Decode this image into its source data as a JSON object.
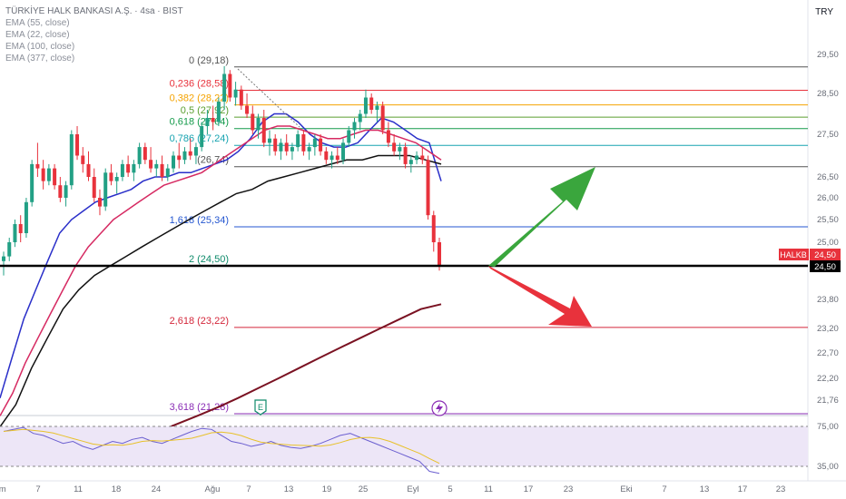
{
  "header": {
    "title": "TÜRKİYE HALK BANKASI A.Ş. · 4sa · BIST",
    "currency": "TRY",
    "indicators": [
      "EMA (55, close)",
      "EMA (22, close)",
      "EMA (100, close)",
      "EMA (377, close)"
    ]
  },
  "price_tag": {
    "symbol": "HALKB",
    "value": "24,50",
    "line_value": "24,50"
  },
  "chart_data": {
    "type": "candlestick",
    "title": "TÜRKİYE HALK BANKASI A.Ş. · 4sa · BIST",
    "y_ticks": [
      "29,50",
      "28,50",
      "27,50",
      "26,50",
      "26,00",
      "25,50",
      "25,00",
      "23,80",
      "23,20",
      "22,70",
      "22,20",
      "21,76"
    ],
    "y_tick_values": [
      29.5,
      28.5,
      27.5,
      26.5,
      26.0,
      25.5,
      25.0,
      23.8,
      23.2,
      22.7,
      22.2,
      21.76
    ],
    "x_ticks": [
      "em",
      "7",
      "11",
      "18",
      "24",
      "Ağu",
      "7",
      "13",
      "19",
      "25",
      "Eyl",
      "5",
      "11",
      "17",
      "23",
      "Eki",
      "7",
      "13",
      "17",
      "23"
    ],
    "rsi_ticks": [
      "75,00",
      "35,00"
    ],
    "rsi_tick_values": [
      75,
      35
    ],
    "fib_levels": [
      {
        "label": "0 (29,18)",
        "price": 29.18,
        "color": "#555555"
      },
      {
        "label": "0,236 (28,58)",
        "price": 28.58,
        "color": "#e8323c"
      },
      {
        "label": "0,382 (28,22)",
        "price": 28.22,
        "color": "#f5a300"
      },
      {
        "label": "0,5 (27,92)",
        "price": 27.92,
        "color": "#5a9e2f"
      },
      {
        "label": "0,618 (27,64)",
        "price": 27.64,
        "color": "#149a4a"
      },
      {
        "label": "0,786 (27,24)",
        "price": 27.24,
        "color": "#16a3b0"
      },
      {
        "label": "(26,74)",
        "price": 26.74,
        "color": "#555555"
      },
      {
        "label": "1,618 (25,34)",
        "price": 25.34,
        "color": "#2456d0"
      },
      {
        "label": "2 (24,50)",
        "price": 24.5,
        "color": "#0e8a6a"
      },
      {
        "label": "2,618 (23,22)",
        "price": 23.22,
        "color": "#d4263a"
      },
      {
        "label": "3,618 (21,28)",
        "price": 21.28,
        "color": "#8a2cb5"
      }
    ],
    "current_price": 24.5,
    "candles": [
      [
        24.6,
        24.8,
        24.3,
        24.7
      ],
      [
        24.7,
        25.1,
        24.6,
        25.0
      ],
      [
        25.0,
        25.5,
        24.9,
        25.4
      ],
      [
        25.4,
        25.6,
        25.0,
        25.2
      ],
      [
        25.2,
        26.0,
        25.1,
        25.9
      ],
      [
        25.9,
        26.9,
        25.8,
        26.8
      ],
      [
        26.8,
        27.3,
        26.5,
        26.7
      ],
      [
        26.7,
        26.9,
        26.2,
        26.4
      ],
      [
        26.4,
        26.8,
        26.3,
        26.7
      ],
      [
        26.7,
        26.8,
        26.2,
        26.3
      ],
      [
        26.3,
        26.5,
        25.9,
        26.0
      ],
      [
        26.0,
        26.4,
        25.8,
        26.3
      ],
      [
        26.3,
        27.6,
        26.2,
        27.5
      ],
      [
        27.5,
        27.7,
        26.9,
        27.0
      ],
      [
        27.0,
        27.2,
        26.6,
        26.8
      ],
      [
        26.8,
        27.1,
        26.4,
        26.5
      ],
      [
        26.5,
        26.7,
        25.9,
        26.0
      ],
      [
        26.0,
        26.2,
        25.6,
        25.8
      ],
      [
        25.8,
        26.7,
        25.7,
        26.6
      ],
      [
        26.6,
        26.8,
        26.3,
        26.4
      ],
      [
        26.4,
        26.6,
        26.1,
        26.5
      ],
      [
        26.5,
        26.9,
        26.4,
        26.8
      ],
      [
        26.8,
        27.0,
        26.5,
        26.6
      ],
      [
        26.6,
        26.9,
        26.4,
        26.8
      ],
      [
        26.8,
        27.3,
        26.7,
        27.2
      ],
      [
        27.2,
        27.3,
        26.8,
        26.9
      ],
      [
        26.9,
        27.2,
        26.6,
        26.7
      ],
      [
        26.7,
        26.9,
        26.5,
        26.8
      ],
      [
        26.8,
        27.0,
        26.4,
        26.5
      ],
      [
        26.5,
        26.8,
        26.4,
        26.7
      ],
      [
        26.7,
        27.1,
        26.6,
        27.0
      ],
      [
        27.0,
        27.3,
        26.7,
        26.9
      ],
      [
        26.9,
        27.2,
        26.8,
        27.1
      ],
      [
        27.1,
        27.4,
        26.9,
        27.0
      ],
      [
        27.0,
        27.3,
        26.8,
        27.2
      ],
      [
        27.2,
        27.8,
        27.1,
        27.7
      ],
      [
        27.7,
        28.1,
        27.5,
        27.9
      ],
      [
        27.9,
        28.2,
        27.6,
        27.8
      ],
      [
        27.8,
        28.4,
        27.7,
        28.3
      ],
      [
        28.3,
        29.2,
        28.1,
        29.0
      ],
      [
        29.0,
        29.1,
        28.3,
        28.4
      ],
      [
        28.4,
        28.8,
        28.2,
        28.6
      ],
      [
        28.6,
        28.7,
        28.1,
        28.2
      ],
      [
        28.2,
        28.5,
        27.9,
        28.0
      ],
      [
        28.0,
        28.2,
        27.5,
        27.6
      ],
      [
        27.6,
        28.0,
        27.4,
        27.9
      ],
      [
        27.9,
        28.1,
        27.2,
        27.3
      ],
      [
        27.3,
        27.6,
        27.0,
        27.4
      ],
      [
        27.4,
        27.5,
        27.0,
        27.1
      ],
      [
        27.1,
        27.4,
        26.9,
        27.3
      ],
      [
        27.3,
        27.5,
        27.0,
        27.1
      ],
      [
        27.1,
        27.3,
        26.9,
        27.2
      ],
      [
        27.2,
        27.6,
        27.1,
        27.5
      ],
      [
        27.5,
        27.6,
        27.0,
        27.1
      ],
      [
        27.1,
        27.3,
        26.9,
        27.2
      ],
      [
        27.2,
        27.5,
        27.0,
        27.4
      ],
      [
        27.4,
        27.5,
        27.0,
        27.1
      ],
      [
        27.1,
        27.2,
        26.8,
        26.9
      ],
      [
        26.9,
        27.1,
        26.7,
        27.0
      ],
      [
        27.0,
        27.2,
        26.8,
        26.9
      ],
      [
        26.9,
        27.4,
        26.8,
        27.3
      ],
      [
        27.3,
        27.7,
        27.2,
        27.6
      ],
      [
        27.6,
        27.9,
        27.4,
        27.8
      ],
      [
        27.8,
        28.1,
        27.6,
        28.0
      ],
      [
        28.0,
        28.6,
        27.9,
        28.4
      ],
      [
        28.4,
        28.5,
        28.0,
        28.1
      ],
      [
        28.1,
        28.3,
        27.8,
        28.2
      ],
      [
        28.2,
        28.3,
        27.5,
        27.6
      ],
      [
        27.6,
        27.8,
        27.2,
        27.3
      ],
      [
        27.3,
        27.5,
        27.0,
        27.1
      ],
      [
        27.1,
        27.3,
        26.9,
        27.2
      ],
      [
        27.2,
        27.3,
        26.7,
        26.8
      ],
      [
        26.8,
        27.0,
        26.6,
        26.9
      ],
      [
        26.9,
        27.1,
        26.8,
        27.0
      ],
      [
        27.0,
        27.2,
        26.8,
        26.9
      ],
      [
        26.9,
        27.0,
        25.5,
        25.6
      ],
      [
        25.6,
        25.7,
        24.8,
        25.0
      ],
      [
        25.0,
        25.1,
        24.4,
        24.5
      ]
    ],
    "ema_lines": [
      {
        "name": "EMA (22, close)",
        "color": "#2a2fc9",
        "values": [
          21.8,
          22.6,
          23.4,
          24.0,
          24.6,
          25.2,
          25.5,
          25.7,
          25.9,
          26.0,
          26.1,
          26.2,
          26.4,
          26.5,
          26.5,
          26.6,
          26.6,
          26.7,
          26.8,
          26.9,
          27.1,
          27.4,
          27.8,
          28.0,
          28.0,
          27.8,
          27.5,
          27.3,
          27.2,
          27.2,
          27.3,
          27.6,
          27.9,
          27.8,
          27.6,
          27.4,
          27.3,
          26.4
        ]
      },
      {
        "name": "EMA (55, close)",
        "color": "#d62a62",
        "values": [
          21.2,
          21.9,
          22.5,
          23.0,
          23.5,
          24.0,
          24.5,
          24.9,
          25.2,
          25.5,
          25.7,
          25.9,
          26.1,
          26.3,
          26.4,
          26.5,
          26.6,
          26.8,
          27.0,
          27.2,
          27.4,
          27.6,
          27.7,
          27.7,
          27.6,
          27.5,
          27.4,
          27.4,
          27.5,
          27.6,
          27.6,
          27.5,
          27.4,
          27.3,
          27.1,
          26.9
        ]
      },
      {
        "name": "EMA (100, close)",
        "color": "#111111",
        "values": [
          20.8,
          21.6,
          22.4,
          23.0,
          23.6,
          24.0,
          24.3,
          24.5,
          24.7,
          24.9,
          25.1,
          25.3,
          25.5,
          25.7,
          25.9,
          26.1,
          26.2,
          26.4,
          26.5,
          26.6,
          26.7,
          26.8,
          26.9,
          26.9,
          27.0,
          27.0,
          27.0,
          26.9,
          26.8
        ]
      },
      {
        "name": "EMA (377, close)",
        "color": "#7a1222",
        "values": [
          20.3,
          20.6,
          20.9,
          21.2,
          21.5,
          21.8,
          22.0,
          22.2,
          22.4,
          22.6,
          22.8,
          23.0,
          23.2,
          23.4,
          23.6,
          23.7
        ]
      }
    ],
    "rsi_values": [
      70,
      72,
      74,
      68,
      66,
      62,
      58,
      60,
      55,
      52,
      56,
      60,
      58,
      62,
      64,
      60,
      58,
      62,
      66,
      70,
      73,
      72,
      66,
      60,
      58,
      55,
      57,
      60,
      56,
      54,
      53,
      55,
      58,
      62,
      66,
      68,
      64,
      60,
      56,
      52,
      48,
      44,
      40,
      30,
      28
    ]
  }
}
